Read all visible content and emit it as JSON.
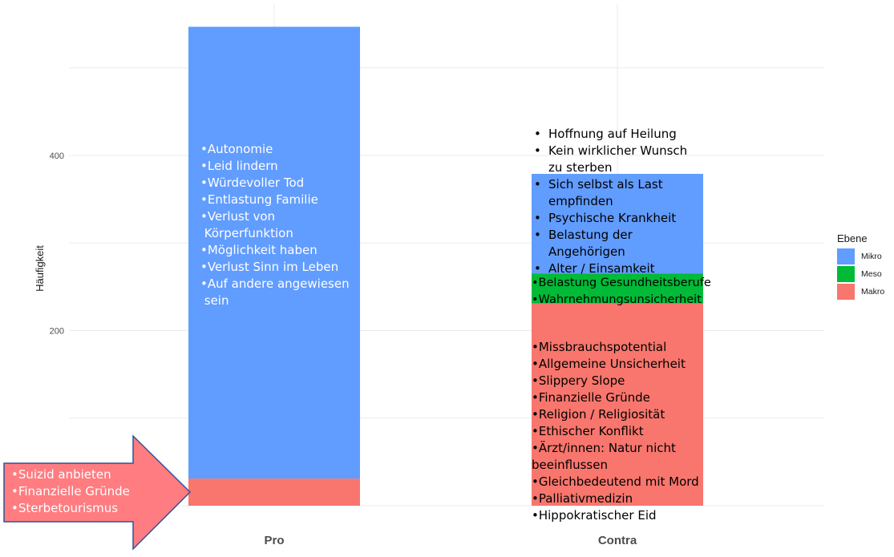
{
  "chart_data": {
    "type": "bar",
    "stacked": true,
    "categories": [
      "Pro",
      "Contra"
    ],
    "ylabel": "Häufigkeit",
    "xlabel": "",
    "ylim": [
      0,
      570
    ],
    "yticks": [
      200,
      400
    ],
    "grid": true,
    "series": [
      {
        "name": "Makro",
        "key": "makro",
        "color": "#F8766D",
        "values": [
          31,
          231
        ]
      },
      {
        "name": "Meso",
        "key": "meso",
        "color": "#00BA38",
        "values": [
          0,
          34
        ]
      },
      {
        "name": "Mikro",
        "key": "mikro",
        "color": "#619CFF",
        "values": [
          516,
          114
        ]
      }
    ],
    "legend": {
      "title": "Ebene",
      "position": "right",
      "order": [
        "Mikro",
        "Meso",
        "Makro"
      ]
    }
  },
  "colors": {
    "mikro": "#619CFF",
    "meso": "#00BA38",
    "makro": "#F8766D",
    "arrow": "#FF7C80",
    "arrow_border": "#2F5597"
  },
  "annotations": {
    "pro_mikro": [
      "•Autonomie",
      "•Leid lindern",
      "•Würdevoller Tod",
      "•Entlastung Familie",
      "•Verlust von",
      " Körperfunktion",
      "•Möglichkeit haben",
      "•Verlust Sinn im Leben",
      "•Auf andere angewiesen",
      " sein"
    ],
    "contra_mikro": [
      "Hoffnung auf Heilung",
      "Kein wirklicher Wunsch zu sterben",
      "Sich selbst als Last empfinden",
      "Psychische Krankheit",
      "Belastung der Angehörigen",
      "Alter / Einsamkeit"
    ],
    "contra_meso": [
      "•Belastung Gesundheitsberufe",
      "•Wahrnehmungsunsicherheit"
    ],
    "contra_makro": [
      "•Missbrauchspotential",
      "•Allgemeine Unsicherheit",
      "•Slippery Slope",
      "•Finanzielle Gründe",
      "•Religion / Religiosität",
      "•Ethischer Konflikt",
      "•Ärzt/innen: Natur nicht beeinflussen",
      "•Gleichbedeutend mit Mord",
      "•Palliativmedizin",
      "•Hippokratischer Eid"
    ],
    "pro_makro_arrow": [
      "•Suizid anbieten",
      "•Finanzielle Gründe",
      "•Sterbetourismus"
    ]
  }
}
